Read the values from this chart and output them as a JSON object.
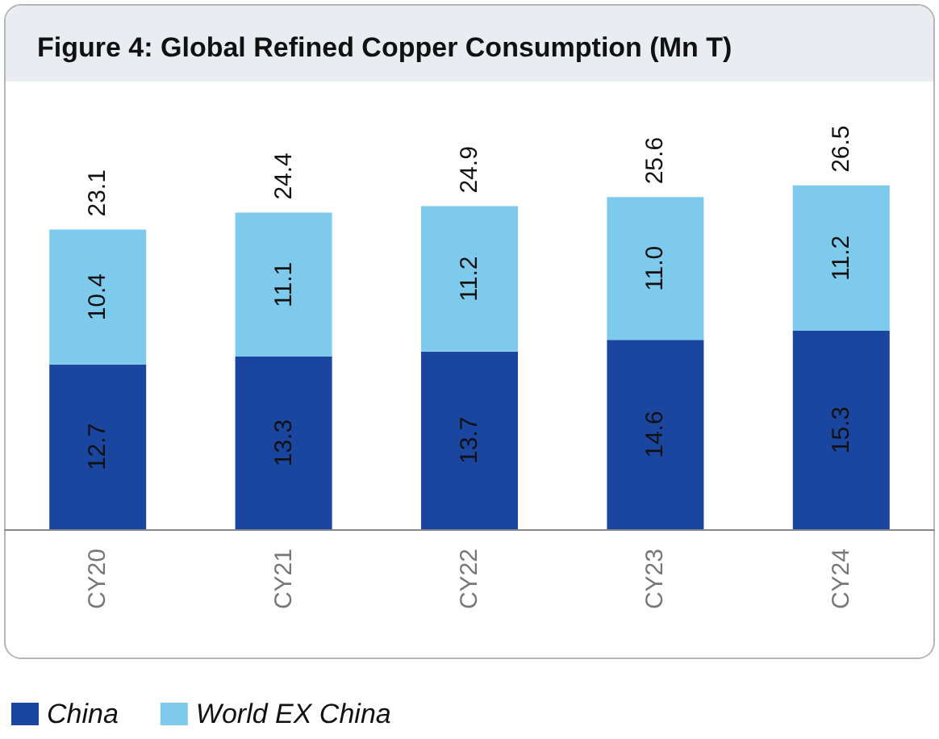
{
  "chart_data": {
    "type": "bar",
    "title": "Figure 4: Global Refined Copper Consumption (Mn T)",
    "categories": [
      "CY20",
      "CY21",
      "CY22",
      "CY23",
      "CY24"
    ],
    "stacked": true,
    "series": [
      {
        "name": "China",
        "color": "#1a46a0",
        "values": [
          12.7,
          13.3,
          13.7,
          14.6,
          15.3
        ],
        "value_labels": [
          "12.7",
          "13.3",
          "13.7",
          "14.6",
          "15.3"
        ]
      },
      {
        "name": "World EX China",
        "color": "#7ecaec",
        "values": [
          10.4,
          11.1,
          11.2,
          11.0,
          11.2
        ],
        "value_labels": [
          "10.4",
          "11.1",
          "11.2",
          "11.0",
          "11.2"
        ]
      }
    ],
    "totals": [
      "23.1",
      "24.4",
      "24.9",
      "25.6",
      "26.5"
    ],
    "legend": "bottom left"
  }
}
